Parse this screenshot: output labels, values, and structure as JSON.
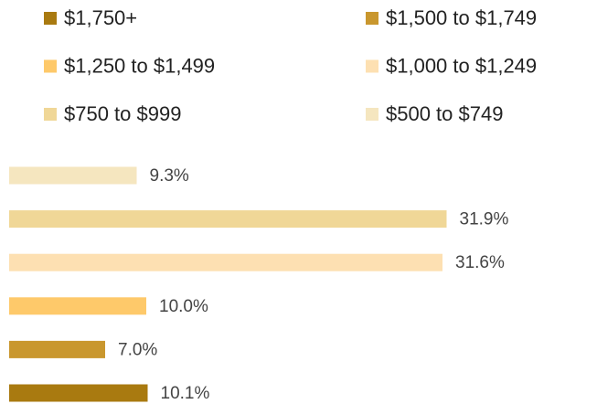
{
  "chart_data": {
    "type": "barh",
    "categories": [
      "$1,750+",
      "$1,500 to $1,749",
      "$1,250 to $1,499",
      "$1,000 to $1,249",
      "$750 to $999",
      "$500 to $749"
    ],
    "values": [
      10.1,
      7.0,
      10.0,
      31.6,
      31.9,
      9.3
    ],
    "value_labels": [
      "10.1%",
      "7.0%",
      "10.0%",
      "31.6%",
      "31.9%",
      "9.3%"
    ],
    "colors": [
      "#a97a10",
      "#c9972e",
      "#fec96a",
      "#fde0b2",
      "#f0d797",
      "#f5e6bf"
    ]
  }
}
